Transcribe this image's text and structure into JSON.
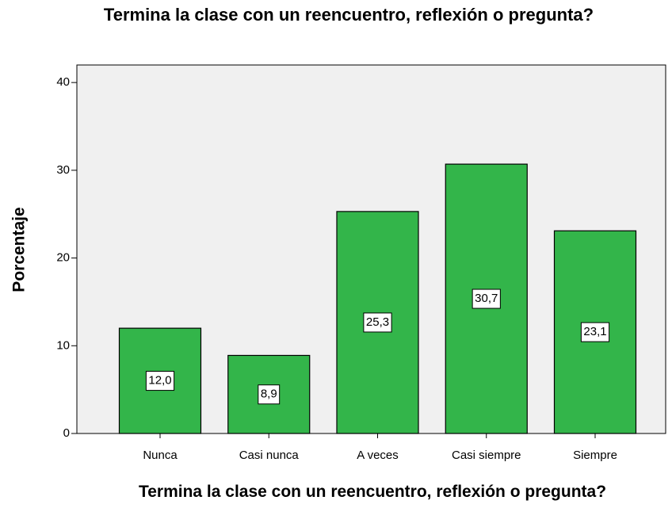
{
  "chart_data": {
    "type": "bar",
    "title": "Termina la clase con un reencuentro, reflexión o pregunta?",
    "xlabel": "Termina la clase con un reencuentro, reflexión o pregunta?",
    "ylabel": "Porcentaje",
    "categories": [
      "Nunca",
      "Casi nunca",
      "A veces",
      "Casi siempre",
      "Siempre"
    ],
    "values": [
      12.0,
      8.9,
      25.3,
      30.7,
      23.1
    ],
    "value_labels": [
      "12,0",
      "8,9",
      "25,3",
      "30,7",
      "23,1"
    ],
    "color": "#33b54a",
    "ylim": [
      0,
      42
    ],
    "yticks": [
      0,
      10,
      20,
      30,
      40
    ],
    "grid": false
  }
}
